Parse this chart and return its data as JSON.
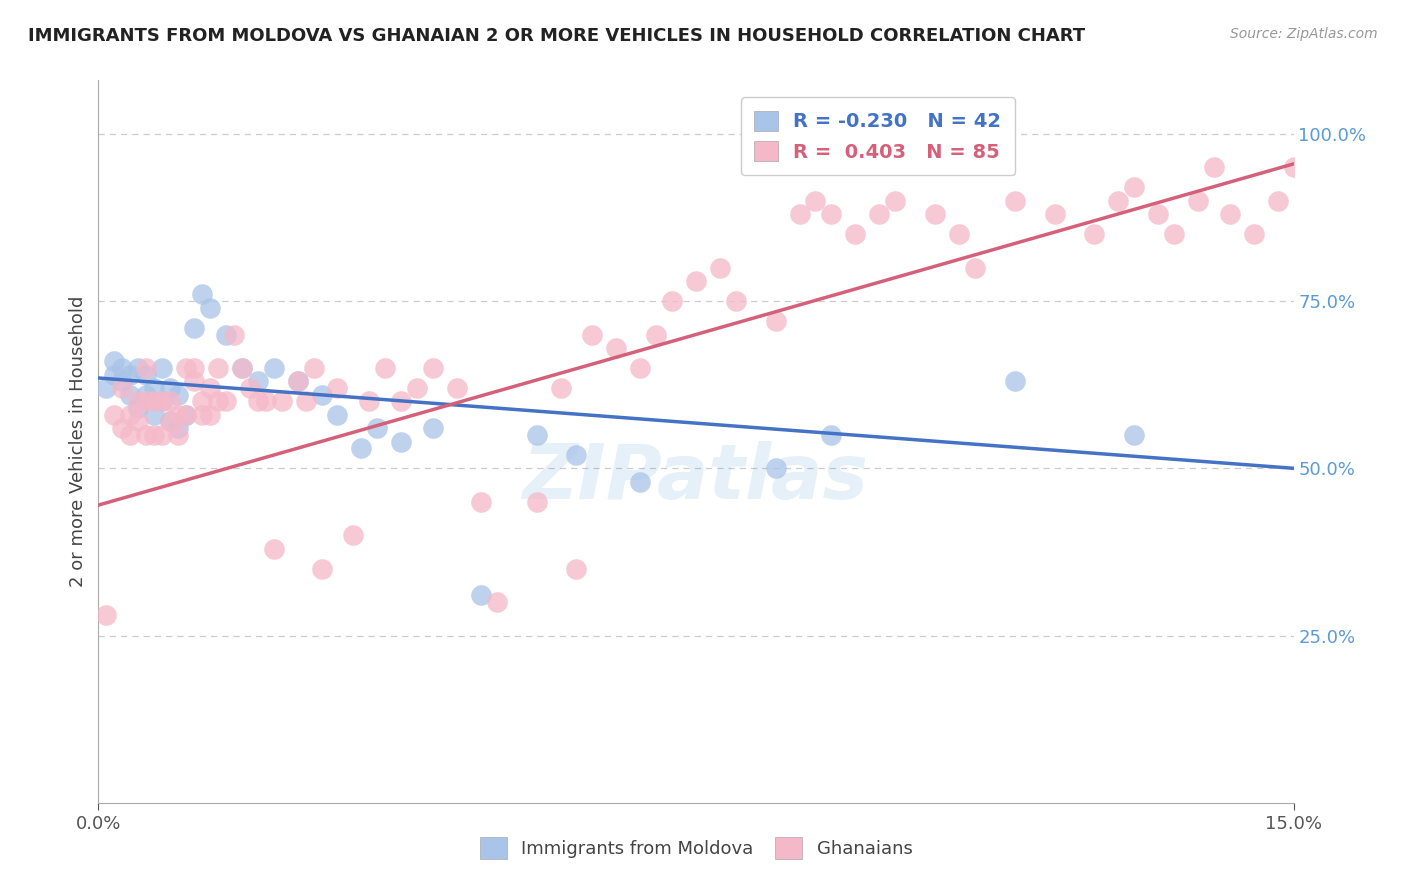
{
  "title": "IMMIGRANTS FROM MOLDOVA VS GHANAIAN 2 OR MORE VEHICLES IN HOUSEHOLD CORRELATION CHART",
  "source": "Source: ZipAtlas.com",
  "ylabel": "2 or more Vehicles in Household",
  "blue_R": "-0.230",
  "blue_N": "42",
  "pink_R": "0.403",
  "pink_N": "85",
  "blue_color": "#a8c4e8",
  "pink_color": "#f5b8c8",
  "blue_line_color": "#4472c4",
  "pink_line_color": "#d4607a",
  "blue_label": "Immigrants from Moldova",
  "pink_label": "Ghanaians",
  "watermark": "ZIPatlas",
  "xlim": [
    0.0,
    0.15
  ],
  "ylim": [
    0.0,
    1.08
  ],
  "ytick_positions": [
    0.25,
    0.5,
    0.75,
    1.0
  ],
  "ytick_labels": [
    "25.0%",
    "50.0%",
    "75.0%",
    "100.0%"
  ],
  "xtick_positions": [
    0.0,
    0.15
  ],
  "xtick_labels": [
    "0.0%",
    "15.0%"
  ],
  "tick_color": "#5b9bd5",
  "grid_color": "#cccccc",
  "blue_x": [
    0.001,
    0.002,
    0.002,
    0.003,
    0.003,
    0.004,
    0.004,
    0.005,
    0.005,
    0.006,
    0.006,
    0.007,
    0.007,
    0.008,
    0.008,
    0.009,
    0.009,
    0.01,
    0.01,
    0.011,
    0.012,
    0.013,
    0.014,
    0.016,
    0.018,
    0.02,
    0.022,
    0.025,
    0.028,
    0.03,
    0.033,
    0.035,
    0.038,
    0.042,
    0.048,
    0.055,
    0.06,
    0.068,
    0.085,
    0.092,
    0.115,
    0.13
  ],
  "blue_y": [
    0.62,
    0.64,
    0.66,
    0.63,
    0.65,
    0.61,
    0.64,
    0.59,
    0.65,
    0.61,
    0.64,
    0.58,
    0.62,
    0.6,
    0.65,
    0.57,
    0.62,
    0.56,
    0.61,
    0.58,
    0.71,
    0.76,
    0.74,
    0.7,
    0.65,
    0.63,
    0.65,
    0.63,
    0.61,
    0.58,
    0.53,
    0.56,
    0.54,
    0.56,
    0.31,
    0.55,
    0.52,
    0.48,
    0.5,
    0.55,
    0.63,
    0.55
  ],
  "pink_x": [
    0.001,
    0.002,
    0.003,
    0.003,
    0.004,
    0.004,
    0.005,
    0.005,
    0.006,
    0.006,
    0.006,
    0.007,
    0.007,
    0.008,
    0.008,
    0.009,
    0.009,
    0.01,
    0.01,
    0.011,
    0.011,
    0.012,
    0.012,
    0.013,
    0.013,
    0.014,
    0.014,
    0.015,
    0.015,
    0.016,
    0.017,
    0.018,
    0.019,
    0.02,
    0.021,
    0.022,
    0.023,
    0.025,
    0.026,
    0.027,
    0.028,
    0.03,
    0.032,
    0.034,
    0.036,
    0.038,
    0.04,
    0.042,
    0.045,
    0.048,
    0.05,
    0.055,
    0.058,
    0.06,
    0.062,
    0.065,
    0.068,
    0.07,
    0.072,
    0.075,
    0.078,
    0.08,
    0.085,
    0.088,
    0.09,
    0.092,
    0.095,
    0.098,
    0.1,
    0.105,
    0.108,
    0.11,
    0.115,
    0.12,
    0.125,
    0.128,
    0.13,
    0.133,
    0.135,
    0.138,
    0.14,
    0.142,
    0.145,
    0.148,
    0.15
  ],
  "pink_y": [
    0.28,
    0.58,
    0.56,
    0.62,
    0.55,
    0.58,
    0.6,
    0.57,
    0.6,
    0.55,
    0.65,
    0.6,
    0.55,
    0.55,
    0.6,
    0.57,
    0.6,
    0.55,
    0.58,
    0.65,
    0.58,
    0.63,
    0.65,
    0.6,
    0.58,
    0.62,
    0.58,
    0.6,
    0.65,
    0.6,
    0.7,
    0.65,
    0.62,
    0.6,
    0.6,
    0.38,
    0.6,
    0.63,
    0.6,
    0.65,
    0.35,
    0.62,
    0.4,
    0.6,
    0.65,
    0.6,
    0.62,
    0.65,
    0.62,
    0.45,
    0.3,
    0.45,
    0.62,
    0.35,
    0.7,
    0.68,
    0.65,
    0.7,
    0.75,
    0.78,
    0.8,
    0.75,
    0.72,
    0.88,
    0.9,
    0.88,
    0.85,
    0.88,
    0.9,
    0.88,
    0.85,
    0.8,
    0.9,
    0.88,
    0.85,
    0.9,
    0.92,
    0.88,
    0.85,
    0.9,
    0.95,
    0.88,
    0.85,
    0.9,
    0.95
  ]
}
